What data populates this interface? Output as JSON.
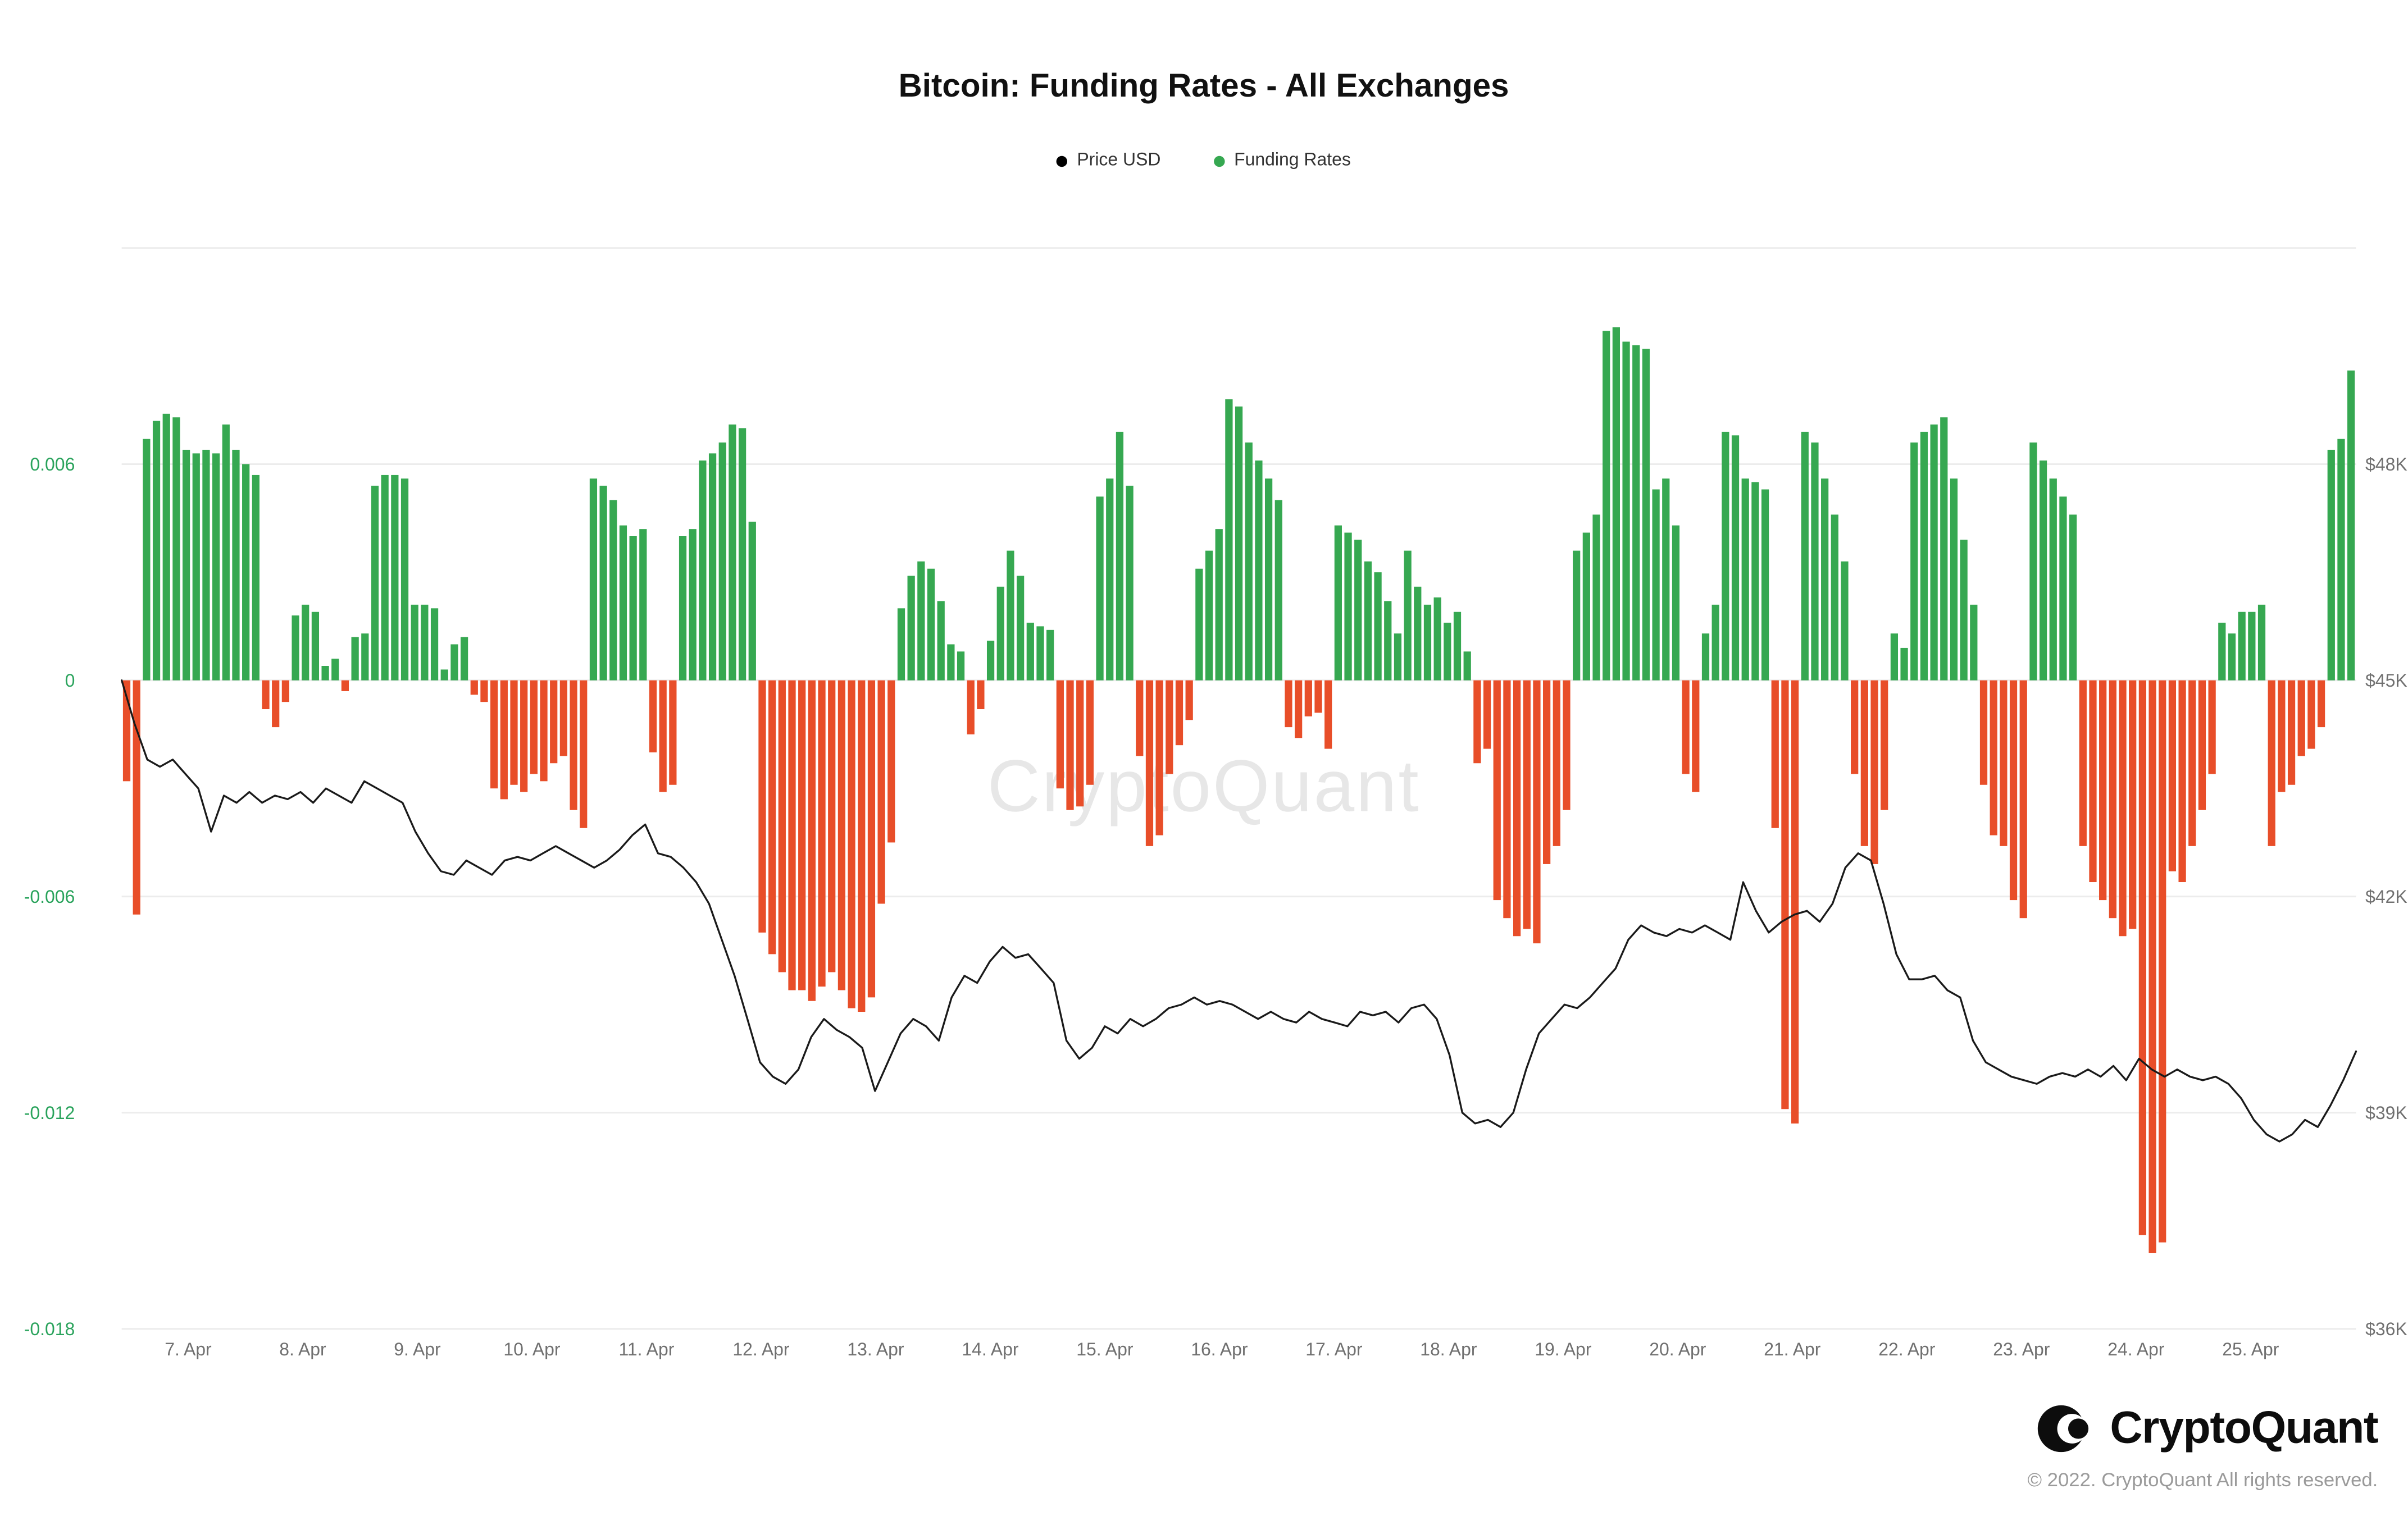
{
  "page": {
    "title": "Bitcoin: Funding Rates - All Exchanges",
    "watermark": "CryptoQuant",
    "footer": {
      "brand": "CryptoQuant",
      "copyright": "© 2022. CryptoQuant All rights reserved."
    }
  },
  "legend": {
    "items": [
      {
        "label": "Price USD",
        "color": "#000000"
      },
      {
        "label": "Funding Rates",
        "color": "#36a851"
      }
    ]
  },
  "chart_data": {
    "type": "bar",
    "overlay_type": "line",
    "title": "Bitcoin: Funding Rates - All Exchanges",
    "legend_position": "top",
    "grid": true,
    "gridline_values": [
      0.012,
      0.006,
      0,
      -0.006,
      -0.012,
      -0.018
    ],
    "x_domain_days_april": [
      6.42,
      25.92
    ],
    "x_tick_days": [
      7,
      8,
      9,
      10,
      11,
      12,
      13,
      14,
      15,
      16,
      17,
      18,
      19,
      20,
      21,
      22,
      23,
      24,
      25
    ],
    "x_tick_labels": [
      "7. Apr",
      "8. Apr",
      "9. Apr",
      "10. Apr",
      "11. Apr",
      "12. Apr",
      "13. Apr",
      "14. Apr",
      "15. Apr",
      "16. Apr",
      "17. Apr",
      "18. Apr",
      "19. Apr",
      "20. Apr",
      "21. Apr",
      "22. Apr",
      "23. Apr",
      "24. Apr",
      "25. Apr"
    ],
    "left_axis": {
      "name": "Funding Rates",
      "ticks": [
        0.006,
        0,
        -0.006,
        -0.012,
        -0.018
      ],
      "range": [
        -0.018,
        0.012
      ],
      "color": "#2aa35c"
    },
    "right_axis": {
      "name": "Price USD",
      "tick_labels": [
        "$48K",
        "$45K",
        "$42K",
        "$39K",
        "$36K"
      ],
      "tick_values_k": [
        48,
        45,
        42,
        39,
        36
      ],
      "range_k": [
        36,
        51
      ],
      "color": "#707070"
    },
    "series": [
      {
        "name": "Funding Rates",
        "type": "bar",
        "positive_color": "#36a851",
        "negative_color": "#e84e29",
        "values": [
          -0.0028,
          -0.0065,
          0.0067,
          0.0072,
          0.0074,
          0.0073,
          0.0064,
          0.0063,
          0.0064,
          0.0063,
          0.0071,
          0.0064,
          0.006,
          0.0057,
          -0.0008,
          -0.0013,
          -0.0006,
          0.0018,
          0.0021,
          0.0019,
          0.0004,
          0.0006,
          -0.0003,
          0.0012,
          0.0013,
          0.0054,
          0.0057,
          0.0057,
          0.0056,
          0.0021,
          0.0021,
          0.002,
          0.0003,
          0.001,
          0.0012,
          -0.0004,
          -0.0006,
          -0.003,
          -0.0033,
          -0.0029,
          -0.0031,
          -0.0026,
          -0.0028,
          -0.0023,
          -0.0021,
          -0.0036,
          -0.0041,
          0.0056,
          0.0054,
          0.005,
          0.0043,
          0.004,
          0.0042,
          -0.002,
          -0.0031,
          -0.0029,
          0.004,
          0.0042,
          0.0061,
          0.0063,
          0.0066,
          0.0071,
          0.007,
          0.0044,
          -0.007,
          -0.0076,
          -0.0081,
          -0.0086,
          -0.0086,
          -0.0089,
          -0.0085,
          -0.0081,
          -0.0086,
          -0.0091,
          -0.0092,
          -0.0088,
          -0.0062,
          -0.0045,
          0.002,
          0.0029,
          0.0033,
          0.0031,
          0.0022,
          0.001,
          0.0008,
          -0.0015,
          -0.0008,
          0.0011,
          0.0026,
          0.0036,
          0.0029,
          0.0016,
          0.0015,
          0.0014,
          -0.003,
          -0.0036,
          -0.0035,
          -0.0029,
          0.0051,
          0.0056,
          0.0069,
          0.0054,
          -0.0021,
          -0.0046,
          -0.0043,
          -0.0026,
          -0.0018,
          -0.0011,
          0.0031,
          0.0036,
          0.0042,
          0.0078,
          0.0076,
          0.0066,
          0.0061,
          0.0056,
          0.005,
          -0.0013,
          -0.0016,
          -0.001,
          -0.0009,
          -0.0019,
          0.0043,
          0.0041,
          0.0039,
          0.0033,
          0.003,
          0.0022,
          0.0013,
          0.0036,
          0.0026,
          0.0021,
          0.0023,
          0.0016,
          0.0019,
          0.0008,
          -0.0023,
          -0.0019,
          -0.0061,
          -0.0066,
          -0.0071,
          -0.0069,
          -0.0073,
          -0.0051,
          -0.0046,
          -0.0036,
          0.0036,
          0.0041,
          0.0046,
          0.0097,
          0.0098,
          0.0094,
          0.0093,
          0.0092,
          0.0053,
          0.0056,
          0.0043,
          -0.0026,
          -0.0031,
          0.0013,
          0.0021,
          0.0069,
          0.0068,
          0.0056,
          0.0055,
          0.0053,
          -0.0041,
          -0.0119,
          -0.0123,
          0.0069,
          0.0066,
          0.0056,
          0.0046,
          0.0033,
          -0.0026,
          -0.0046,
          -0.0051,
          -0.0036,
          0.0013,
          0.0009,
          0.0066,
          0.0069,
          0.0071,
          0.0073,
          0.0056,
          0.0039,
          0.0021,
          -0.0029,
          -0.0043,
          -0.0046,
          -0.0061,
          -0.0066,
          0.0066,
          0.0061,
          0.0056,
          0.0051,
          0.0046,
          -0.0046,
          -0.0056,
          -0.0061,
          -0.0066,
          -0.0071,
          -0.0069,
          -0.0154,
          -0.0159,
          -0.0156,
          -0.0053,
          -0.0056,
          -0.0046,
          -0.0036,
          -0.0026,
          0.0016,
          0.0013,
          0.0019,
          0.0019,
          0.0021,
          -0.0046,
          -0.0031,
          -0.0029,
          -0.0021,
          -0.0019,
          -0.0013,
          0.0064,
          0.0067,
          0.0086
        ]
      },
      {
        "name": "Price USD",
        "type": "line",
        "color": "#1a1a1a",
        "unit": "$K",
        "values": [
          45.0,
          44.4,
          43.9,
          43.8,
          43.9,
          43.7,
          43.5,
          42.9,
          43.4,
          43.3,
          43.45,
          43.3,
          43.4,
          43.35,
          43.45,
          43.3,
          43.5,
          43.4,
          43.3,
          43.6,
          43.5,
          43.4,
          43.3,
          42.9,
          42.6,
          42.35,
          42.3,
          42.5,
          42.4,
          42.3,
          42.5,
          42.55,
          42.5,
          42.6,
          42.7,
          42.6,
          42.5,
          42.4,
          42.5,
          42.65,
          42.85,
          43.0,
          42.6,
          42.55,
          42.4,
          42.2,
          41.9,
          41.4,
          40.9,
          40.3,
          39.7,
          39.5,
          39.4,
          39.6,
          40.05,
          40.3,
          40.15,
          40.05,
          39.9,
          39.3,
          39.7,
          40.1,
          40.3,
          40.2,
          40.0,
          40.6,
          40.9,
          40.8,
          41.1,
          41.3,
          41.15,
          41.2,
          41.0,
          40.8,
          40.0,
          39.75,
          39.9,
          40.2,
          40.1,
          40.3,
          40.2,
          40.3,
          40.45,
          40.5,
          40.6,
          40.5,
          40.55,
          40.5,
          40.4,
          40.3,
          40.4,
          40.3,
          40.25,
          40.4,
          40.3,
          40.25,
          40.2,
          40.4,
          40.35,
          40.4,
          40.25,
          40.45,
          40.5,
          40.3,
          39.8,
          39.0,
          38.85,
          38.9,
          38.8,
          39.0,
          39.6,
          40.1,
          40.3,
          40.5,
          40.45,
          40.6,
          40.8,
          41.0,
          41.4,
          41.6,
          41.5,
          41.45,
          41.55,
          41.5,
          41.6,
          41.5,
          41.4,
          42.2,
          41.8,
          41.5,
          41.65,
          41.75,
          41.8,
          41.65,
          41.9,
          42.4,
          42.6,
          42.5,
          41.9,
          41.2,
          40.85,
          40.85,
          40.9,
          40.7,
          40.6,
          40.0,
          39.7,
          39.6,
          39.5,
          39.45,
          39.4,
          39.5,
          39.55,
          39.5,
          39.6,
          39.5,
          39.65,
          39.45,
          39.75,
          39.6,
          39.5,
          39.6,
          39.5,
          39.45,
          39.5,
          39.4,
          39.2,
          38.9,
          38.7,
          38.6,
          38.7,
          38.9,
          38.8,
          39.1,
          39.45,
          39.85
        ]
      }
    ]
  }
}
